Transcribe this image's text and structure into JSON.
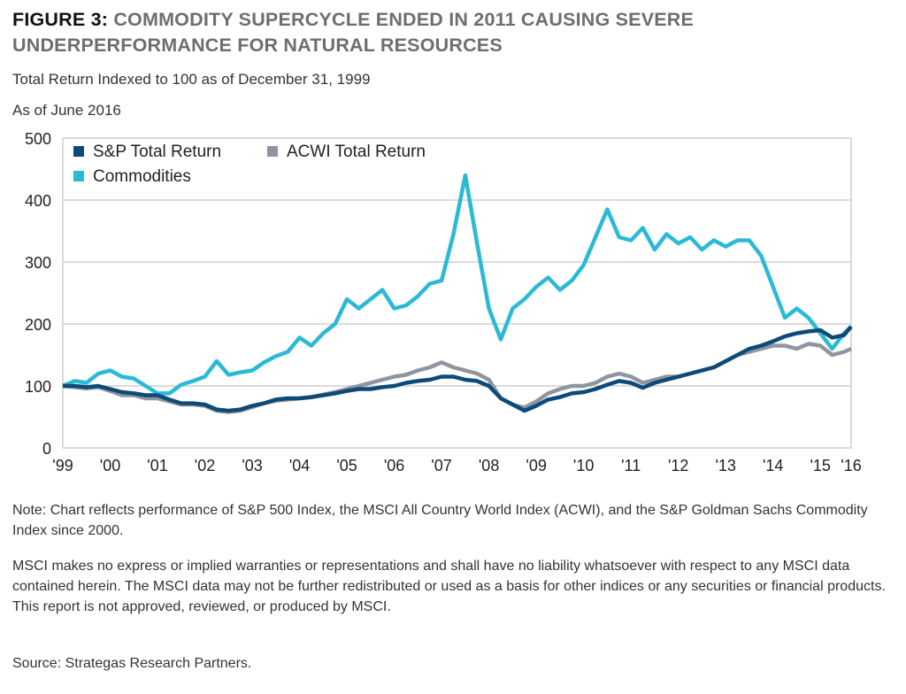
{
  "title": {
    "figure": "FIGURE 3:",
    "text": "COMMODITY SUPERCYCLE ENDED IN 2011 CAUSING SEVERE UNDERPERFORMANCE FOR NATURAL RESOURCES"
  },
  "subtitle": "Total Return Indexed to 100 as of December 31, 1999",
  "as_of": "As of June 2016",
  "notes": {
    "note": "Note: Chart reflects performance of S&P 500 Index, the MSCI All Country World Index (ACWI), and the S&P Goldman Sachs Commodity Index since 2000.",
    "disclaimer": "MSCI makes no express or implied warranties or representations and shall have no liability whatsoever with respect to any MSCI data contained herein. The MSCI data may not be further redistributed or used as a basis for other indices or any securities or financial products. This report is not approved, reviewed, or produced by MSCI.",
    "source": "Source: Strategas Research Partners."
  },
  "chart_data": {
    "type": "line",
    "ylim": [
      0,
      500
    ],
    "yticks": [
      0,
      100,
      200,
      300,
      400,
      500
    ],
    "xlim": [
      1999,
      2015.65
    ],
    "xticks": [
      {
        "value": 1999,
        "label": "'99"
      },
      {
        "value": 2000,
        "label": "'00"
      },
      {
        "value": 2001,
        "label": "'01"
      },
      {
        "value": 2002,
        "label": "'02"
      },
      {
        "value": 2003,
        "label": "'03"
      },
      {
        "value": 2004,
        "label": "'04"
      },
      {
        "value": 2005,
        "label": "'05"
      },
      {
        "value": 2006,
        "label": "'06"
      },
      {
        "value": 2007,
        "label": "'07"
      },
      {
        "value": 2008,
        "label": "'08"
      },
      {
        "value": 2009,
        "label": "'09"
      },
      {
        "value": 2010,
        "label": "'10"
      },
      {
        "value": 2011,
        "label": "'11"
      },
      {
        "value": 2012,
        "label": "'12"
      },
      {
        "value": 2013,
        "label": "'13"
      },
      {
        "value": 2014,
        "label": "'14"
      },
      {
        "value": 2015,
        "label": "'15"
      },
      {
        "value": 2015.65,
        "label": "'16"
      }
    ],
    "grid": "horizontal",
    "legend": "top-left",
    "x": [
      1999,
      1999.25,
      1999.5,
      1999.75,
      2000,
      2000.25,
      2000.5,
      2000.75,
      2001,
      2001.25,
      2001.5,
      2001.75,
      2002,
      2002.25,
      2002.5,
      2002.75,
      2003,
      2003.25,
      2003.5,
      2003.75,
      2004,
      2004.25,
      2004.5,
      2004.75,
      2005,
      2005.25,
      2005.5,
      2005.75,
      2006,
      2006.25,
      2006.5,
      2006.75,
      2007,
      2007.25,
      2007.5,
      2007.75,
      2008,
      2008.25,
      2008.5,
      2008.75,
      2009,
      2009.25,
      2009.5,
      2009.75,
      2010,
      2010.25,
      2010.5,
      2010.75,
      2011,
      2011.25,
      2011.5,
      2011.75,
      2012,
      2012.25,
      2012.5,
      2012.75,
      2013,
      2013.25,
      2013.5,
      2013.75,
      2014,
      2014.25,
      2014.5,
      2014.75,
      2015,
      2015.25,
      2015.5,
      2015.65
    ],
    "series": [
      {
        "name": "S&P Total Return",
        "color": "#0c4a79",
        "values": [
          100,
          100,
          98,
          100,
          95,
          90,
          88,
          85,
          85,
          78,
          72,
          72,
          70,
          62,
          60,
          62,
          68,
          72,
          78,
          80,
          80,
          82,
          85,
          88,
          92,
          95,
          95,
          98,
          100,
          105,
          108,
          110,
          115,
          115,
          110,
          108,
          100,
          80,
          70,
          60,
          68,
          78,
          82,
          88,
          90,
          95,
          102,
          108,
          105,
          97,
          105,
          110,
          115,
          120,
          125,
          130,
          140,
          150,
          160,
          165,
          172,
          180,
          185,
          188,
          190,
          178,
          182,
          196
        ]
      },
      {
        "name": "ACWI Total Return",
        "color": "#8f959e",
        "values": [
          100,
          98,
          96,
          98,
          92,
          85,
          85,
          80,
          80,
          75,
          70,
          70,
          68,
          60,
          58,
          60,
          66,
          72,
          76,
          78,
          80,
          82,
          86,
          90,
          95,
          100,
          105,
          110,
          115,
          118,
          125,
          130,
          138,
          130,
          125,
          120,
          110,
          80,
          70,
          65,
          75,
          88,
          95,
          100,
          100,
          105,
          115,
          120,
          115,
          105,
          110,
          115,
          115,
          120,
          125,
          130,
          140,
          150,
          155,
          160,
          165,
          165,
          160,
          168,
          165,
          150,
          155,
          160
        ]
      },
      {
        "name": "Commodities",
        "color": "#2bbad6",
        "values": [
          100,
          108,
          105,
          120,
          125,
          115,
          112,
          100,
          88,
          88,
          102,
          108,
          115,
          140,
          118,
          122,
          125,
          138,
          148,
          155,
          178,
          165,
          185,
          200,
          240,
          225,
          240,
          255,
          225,
          230,
          245,
          265,
          270,
          345,
          440,
          330,
          225,
          175,
          225,
          240,
          260,
          275,
          255,
          270,
          295,
          340,
          385,
          340,
          335,
          355,
          320,
          345,
          330,
          340,
          320,
          335,
          325,
          335,
          335,
          310,
          260,
          210,
          225,
          210,
          185,
          160,
          185,
          195
        ]
      }
    ]
  }
}
